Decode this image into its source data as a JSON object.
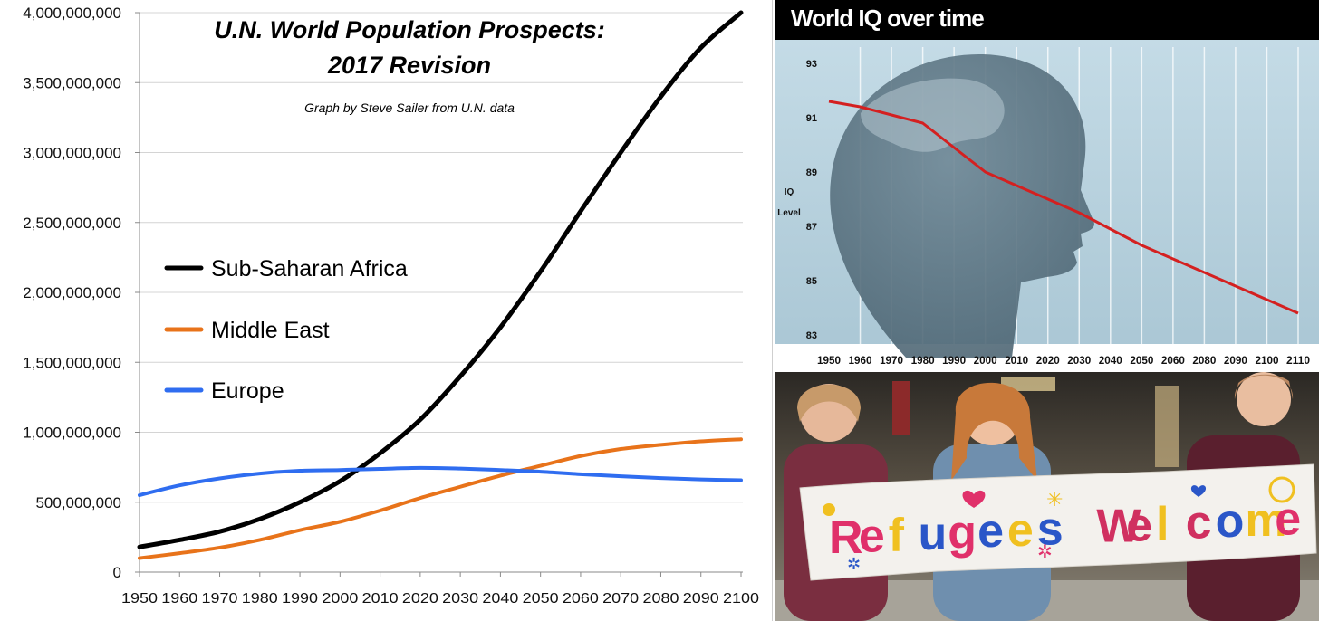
{
  "chart_data": [
    {
      "type": "line",
      "title_line1": "U.N. World Population Prospects:",
      "title_line2": "2017 Revision",
      "subtitle": "Graph by Steve Sailer from U.N. data",
      "xlabel": "",
      "ylabel": "",
      "xlim": [
        1950,
        2100
      ],
      "ylim": [
        0,
        4000000000
      ],
      "x_ticks": [
        "1950",
        "1960",
        "1970",
        "1980",
        "1990",
        "2000",
        "2010",
        "2020",
        "2030",
        "2040",
        "2050",
        "2060",
        "2070",
        "2080",
        "2090",
        "2100"
      ],
      "y_ticks": [
        "0",
        "500,000,000",
        "1,000,000,000",
        "1,500,000,000",
        "2,000,000,000",
        "2,500,000,000",
        "3,000,000,000",
        "3,500,000,000",
        "4,000,000,000"
      ],
      "y_tick_values": [
        0,
        500000000,
        1000000000,
        1500000000,
        2000000000,
        2500000000,
        3000000000,
        3500000000,
        4000000000
      ],
      "legend_position": "left-middle",
      "x": [
        1950,
        1960,
        1970,
        1980,
        1990,
        2000,
        2010,
        2020,
        2030,
        2040,
        2050,
        2060,
        2070,
        2080,
        2090,
        2100
      ],
      "series": [
        {
          "name": "Sub-Saharan Africa",
          "color": "#000000",
          "values": [
            180000000,
            230000000,
            290000000,
            380000000,
            500000000,
            650000000,
            850000000,
            1090000000,
            1400000000,
            1750000000,
            2150000000,
            2580000000,
            3000000000,
            3400000000,
            3750000000,
            4000000000
          ]
        },
        {
          "name": "Middle East",
          "color": "#e8731a",
          "values": [
            100000000,
            135000000,
            175000000,
            230000000,
            300000000,
            360000000,
            440000000,
            530000000,
            610000000,
            690000000,
            760000000,
            830000000,
            880000000,
            910000000,
            935000000,
            950000000
          ]
        },
        {
          "name": "Europe",
          "color": "#2f6df0",
          "values": [
            550000000,
            620000000,
            670000000,
            705000000,
            725000000,
            730000000,
            738000000,
            745000000,
            740000000,
            730000000,
            718000000,
            700000000,
            685000000,
            672000000,
            663000000,
            657000000
          ]
        }
      ]
    },
    {
      "type": "line",
      "title": "World IQ over time",
      "ylabel_line1": "IQ",
      "ylabel_line2": "Level",
      "ylim": [
        83,
        93
      ],
      "y_ticks": [
        "93",
        "91",
        "89",
        "87",
        "85",
        "83"
      ],
      "y_tick_values": [
        93,
        91,
        89,
        87,
        85,
        83
      ],
      "x_ticks": [
        "1950",
        "1960",
        "1970",
        "1980",
        "1990",
        "2000",
        "2010",
        "2020",
        "2030",
        "2040",
        "2050",
        "2060",
        "2080",
        "2090",
        "2100",
        "2110"
      ],
      "series": [
        {
          "name": "IQ",
          "color": "#d42020",
          "x_index": [
            0,
            1,
            2,
            3,
            4,
            5,
            6,
            7,
            8,
            9,
            10,
            11,
            12,
            13,
            14,
            15
          ],
          "values": [
            91.6,
            91.4,
            91.1,
            90.8,
            89.9,
            89.0,
            88.5,
            88.0,
            87.5,
            86.9,
            86.3,
            85.8,
            85.3,
            84.8,
            84.3,
            83.8
          ]
        }
      ]
    }
  ],
  "photo": {
    "banner_text": "Refugees Welcome",
    "letter_colors": [
      "#e0306a",
      "#e0306a",
      "#f0c020",
      "#2a56c8",
      "#e0306a",
      "#2a56c8",
      "#f0c020",
      "#2a56c8",
      "#d03060",
      "#d03060",
      "#f0c020",
      "#d03060",
      "#2a56c8",
      "#f0c020",
      "#e0306a"
    ]
  }
}
